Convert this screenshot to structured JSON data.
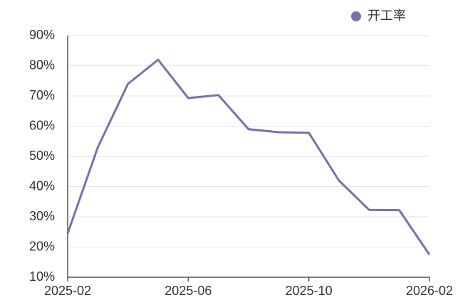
{
  "chart_data": {
    "type": "line",
    "categories": [
      "2025-02",
      null,
      null,
      null,
      "2025-06",
      null,
      null,
      null,
      "2025-10",
      null,
      null,
      null,
      "2026-02"
    ],
    "series": [
      {
        "name": "开工率",
        "color": "#7b70a9",
        "values": [
          24.5,
          53,
          74,
          82,
          69.3,
          70.3,
          59,
          58,
          57.8,
          42,
          32.3,
          32.2,
          17.5
        ]
      }
    ],
    "ylim": [
      10,
      90
    ],
    "yticks": [
      {
        "value": 10,
        "label": "10%"
      },
      {
        "value": 20,
        "label": "20%"
      },
      {
        "value": 30,
        "label": "30%"
      },
      {
        "value": 40,
        "label": "40%"
      },
      {
        "value": 50,
        "label": "50%"
      },
      {
        "value": 60,
        "label": "60%"
      },
      {
        "value": 70,
        "label": "70%"
      },
      {
        "value": 80,
        "label": "80%"
      },
      {
        "value": 90,
        "label": "90%"
      }
    ],
    "grid": true,
    "legend": "top-right"
  }
}
